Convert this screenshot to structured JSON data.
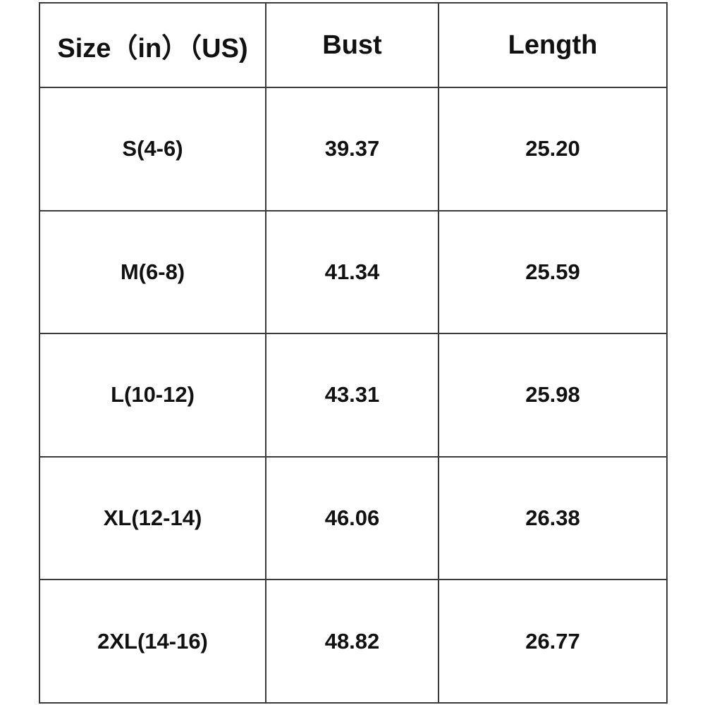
{
  "table": {
    "header": [
      "Size（in）（US)",
      "Bust",
      "Length"
    ],
    "rows": [
      [
        "S(4-6)",
        "39.37",
        "25.20"
      ],
      [
        "M(6-8)",
        "41.34",
        "25.59"
      ],
      [
        "L(10-12)",
        "43.31",
        "25.98"
      ],
      [
        "XL(12-14)",
        "46.06",
        "26.38"
      ],
      [
        "2XL(14-16)",
        "48.82",
        "26.77"
      ]
    ]
  }
}
